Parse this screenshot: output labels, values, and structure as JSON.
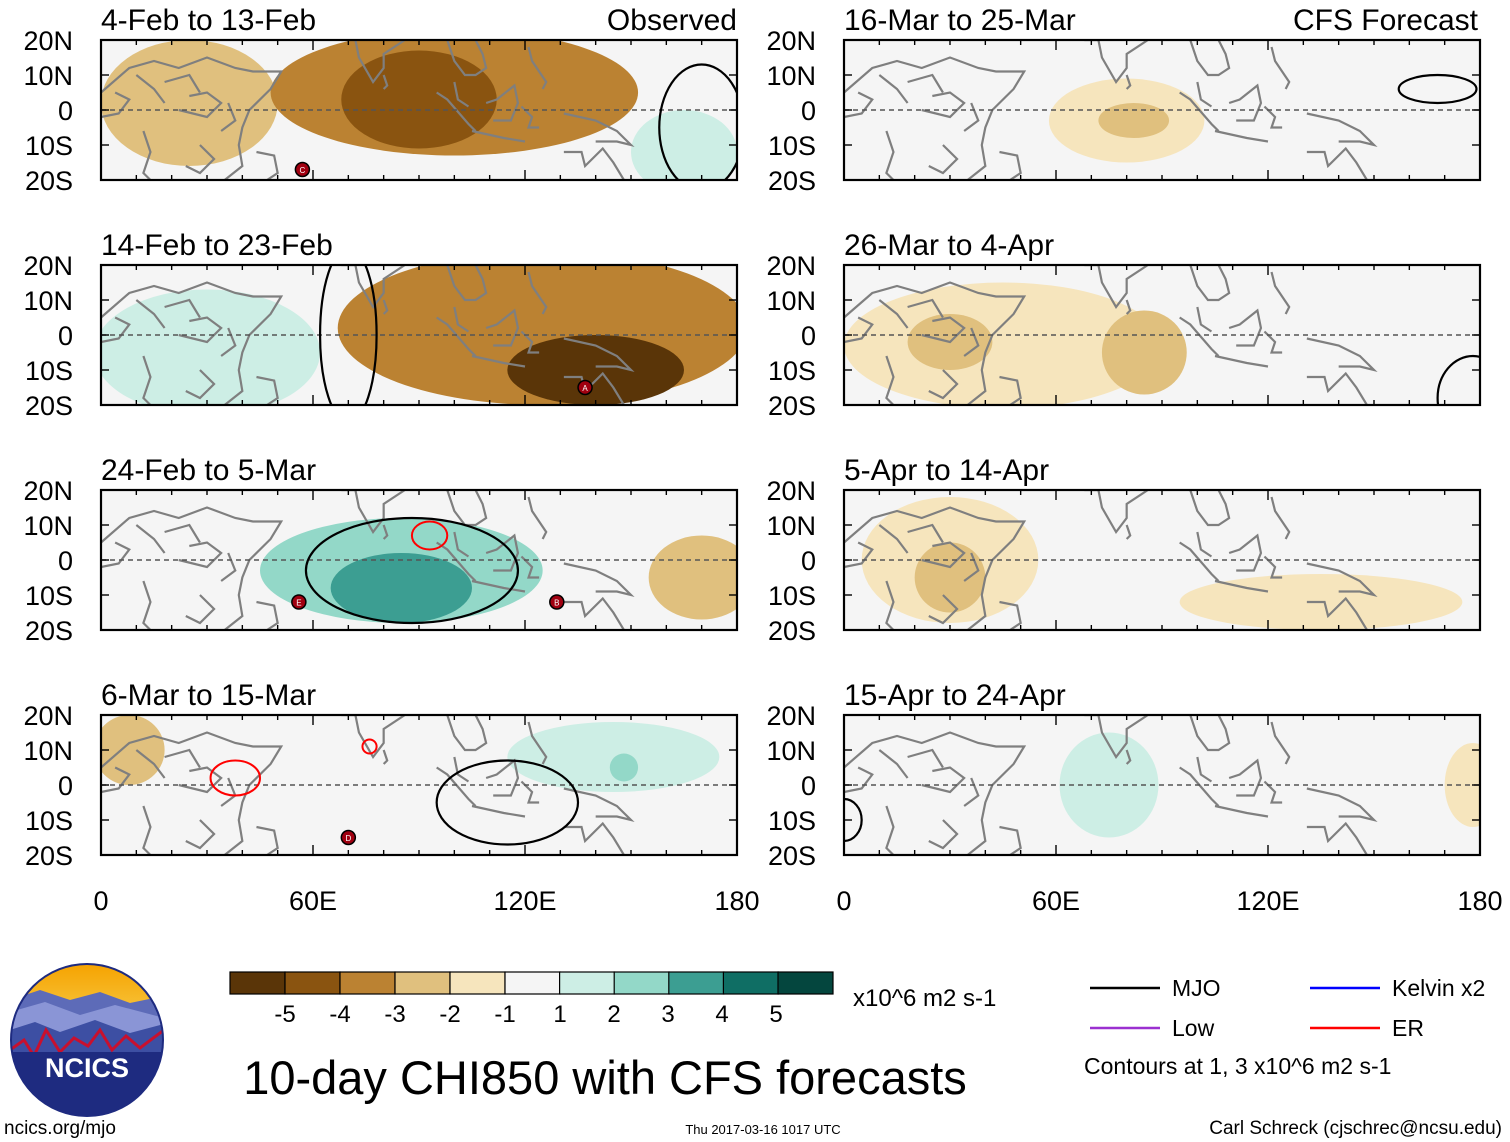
{
  "chart_data": {
    "type": "heatmap",
    "title": "10-day CHI850 with CFS forecasts",
    "variable": "CHI850",
    "units": "x10^6 m2 s-1",
    "colors": {
      "dry5": "#5a3508",
      "dry4": "#8a5410",
      "dry3": "#bb8232",
      "dry2": "#e0c07e",
      "dry1": "#f6e5bd",
      "neutral": "#f5f5f5",
      "wet1": "#cdeee5",
      "wet2": "#93d8c8",
      "wet3": "#3c9e92",
      "wet4": "#0f6e64",
      "wet5": "#04463e",
      "mjo": "#000000",
      "kelvin": "#0000ff",
      "low": "#9b30d0",
      "er": "#ff0000",
      "land": "#7f7f7f"
    },
    "colorbar": {
      "labels": [
        "-5",
        "-4",
        "-3",
        "-2",
        "-1",
        "1",
        "2",
        "3",
        "4",
        "5"
      ]
    },
    "lat_ticks": [
      "20N",
      "10N",
      "0",
      "10S",
      "20S"
    ],
    "lon_ticks": [
      "0",
      "60E",
      "120E",
      "180"
    ],
    "lat_range": [
      -20,
      20
    ],
    "lon_range": [
      0,
      180
    ],
    "observed_label": "Observed",
    "forecast_label": "CFS Forecast",
    "panels": [
      {
        "period": "4-Feb to 13-Feb",
        "column": "observed",
        "anomalies": [
          {
            "lon": 25,
            "lat": 2,
            "rlon": 25,
            "rlat": 18,
            "level": -2
          },
          {
            "lon": 100,
            "lat": 5,
            "rlon": 52,
            "rlat": 18,
            "level": -3
          },
          {
            "lon": 90,
            "lat": 3,
            "rlon": 22,
            "rlat": 14,
            "level": -4
          },
          {
            "lon": 165,
            "lat": -12,
            "rlon": 15,
            "rlat": 12,
            "level": 1
          }
        ],
        "storms": [
          {
            "id": "C",
            "lon": 57,
            "lat": -17
          }
        ],
        "mjo": [
          {
            "lon": 170,
            "lat": -5,
            "rlon": 12,
            "rlat": 18
          }
        ]
      },
      {
        "period": "14-Feb to 23-Feb",
        "column": "observed",
        "anomalies": [
          {
            "lon": 30,
            "lat": -5,
            "rlon": 32,
            "rlat": 18,
            "level": 1
          },
          {
            "lon": 125,
            "lat": 2,
            "rlon": 58,
            "rlat": 22,
            "level": -3
          },
          {
            "lon": 140,
            "lat": -10,
            "rlon": 25,
            "rlat": 10,
            "level": -5
          }
        ],
        "storms": [
          {
            "id": "A",
            "lon": 137,
            "lat": -15
          }
        ],
        "mjo": [
          {
            "lon": 70,
            "lat": 0,
            "rlon": 8,
            "rlat": 25
          }
        ]
      },
      {
        "period": "24-Feb to 5-Mar",
        "column": "observed",
        "anomalies": [
          {
            "lon": 85,
            "lat": -3,
            "rlon": 40,
            "rlat": 15,
            "level": 2
          },
          {
            "lon": 85,
            "lat": -8,
            "rlon": 20,
            "rlat": 10,
            "level": 3
          },
          {
            "lon": 170,
            "lat": -5,
            "rlon": 15,
            "rlat": 12,
            "level": -2
          }
        ],
        "storms": [
          {
            "id": "E",
            "lon": 56,
            "lat": -12
          },
          {
            "id": "B",
            "lon": 129,
            "lat": -12
          }
        ],
        "mjo": [
          {
            "lon": 88,
            "lat": -3,
            "rlon": 30,
            "rlat": 15
          }
        ],
        "er": [
          {
            "lon": 93,
            "lat": 7,
            "rlon": 5,
            "rlat": 4
          }
        ]
      },
      {
        "period": "6-Mar to 15-Mar",
        "column": "observed",
        "anomalies": [
          {
            "lon": 8,
            "lat": 10,
            "rlon": 10,
            "rlat": 10,
            "level": -2
          },
          {
            "lon": 145,
            "lat": 8,
            "rlon": 30,
            "rlat": 10,
            "level": 1
          },
          {
            "lon": 148,
            "lat": 5,
            "rlon": 4,
            "rlat": 4,
            "level": 2
          }
        ],
        "storms": [
          {
            "id": "D",
            "lon": 70,
            "lat": -15
          }
        ],
        "mjo": [
          {
            "lon": 115,
            "lat": -5,
            "rlon": 20,
            "rlat": 12
          }
        ],
        "er": [
          {
            "lon": 38,
            "lat": 2,
            "rlon": 7,
            "rlat": 5
          },
          {
            "lon": 76,
            "lat": 11,
            "rlon": 2,
            "rlat": 2
          }
        ]
      },
      {
        "period": "16-Mar to 25-Mar",
        "column": "forecast",
        "anomalies": [
          {
            "lon": 80,
            "lat": -3,
            "rlon": 22,
            "rlat": 12,
            "level": -1
          },
          {
            "lon": 82,
            "lat": -3,
            "rlon": 10,
            "rlat": 5,
            "level": -2
          }
        ],
        "storms": [],
        "mjo": [
          {
            "lon": 168,
            "lat": 6,
            "rlon": 11,
            "rlat": 4
          }
        ]
      },
      {
        "period": "26-Mar to 4-Apr",
        "column": "forecast",
        "anomalies": [
          {
            "lon": 45,
            "lat": -3,
            "rlon": 45,
            "rlat": 18,
            "level": -1
          },
          {
            "lon": 30,
            "lat": -2,
            "rlon": 12,
            "rlat": 8,
            "level": -2
          },
          {
            "lon": 85,
            "lat": -5,
            "rlon": 12,
            "rlat": 12,
            "level": -2
          }
        ],
        "storms": [],
        "mjo": [
          {
            "lon": 178,
            "lat": -18,
            "rlon": 10,
            "rlat": 12
          }
        ]
      },
      {
        "period": "5-Apr to 14-Apr",
        "column": "forecast",
        "anomalies": [
          {
            "lon": 30,
            "lat": 0,
            "rlon": 25,
            "rlat": 18,
            "level": -1
          },
          {
            "lon": 30,
            "lat": -5,
            "rlon": 10,
            "rlat": 10,
            "level": -2
          },
          {
            "lon": 135,
            "lat": -12,
            "rlon": 40,
            "rlat": 8,
            "level": -1
          }
        ],
        "storms": [],
        "mjo": []
      },
      {
        "period": "15-Apr to 24-Apr",
        "column": "forecast",
        "anomalies": [
          {
            "lon": 75,
            "lat": 0,
            "rlon": 14,
            "rlat": 15,
            "level": 1
          },
          {
            "lon": 178,
            "lat": 0,
            "rlon": 8,
            "rlat": 12,
            "level": -1
          }
        ],
        "storms": [],
        "mjo": [
          {
            "lon": 0,
            "lat": -10,
            "rlon": 5,
            "rlat": 6
          }
        ]
      }
    ]
  },
  "colorbar_units": "x10^6 m2 s-1",
  "legend": {
    "items": [
      {
        "label": "MJO",
        "color": "#000000"
      },
      {
        "label": "Kelvin x2",
        "color": "#0000ff"
      },
      {
        "label": "Low",
        "color": "#9b30d0"
      },
      {
        "label": "ER",
        "color": "#ff0000"
      }
    ],
    "contours_note": "Contours at 1, 3 x10^6 m2 s-1"
  },
  "logo": {
    "text": "NCICS"
  },
  "footer": {
    "left": "ncics.org/mjo",
    "center": "Thu 2017-03-16 1017 UTC",
    "right": "Carl Schreck (cjschrec@ncsu.edu)"
  }
}
